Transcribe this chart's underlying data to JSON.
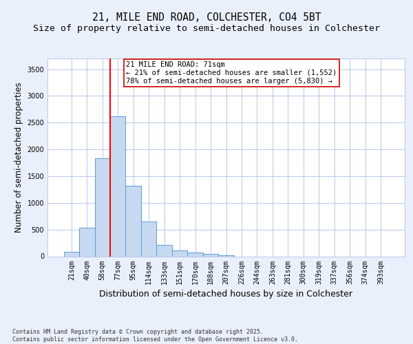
{
  "title_line1": "21, MILE END ROAD, COLCHESTER, CO4 5BT",
  "title_line2": "Size of property relative to semi-detached houses in Colchester",
  "xlabel": "Distribution of semi-detached houses by size in Colchester",
  "ylabel": "Number of semi-detached properties",
  "footnote": "Contains HM Land Registry data © Crown copyright and database right 2025.\nContains public sector information licensed under the Open Government Licence v3.0.",
  "categories": [
    "21sqm",
    "40sqm",
    "58sqm",
    "77sqm",
    "95sqm",
    "114sqm",
    "133sqm",
    "151sqm",
    "170sqm",
    "188sqm",
    "207sqm",
    "226sqm",
    "244sqm",
    "263sqm",
    "281sqm",
    "300sqm",
    "319sqm",
    "337sqm",
    "356sqm",
    "374sqm",
    "393sqm"
  ],
  "values": [
    80,
    530,
    1840,
    2620,
    1320,
    650,
    210,
    110,
    70,
    45,
    20,
    0,
    0,
    0,
    0,
    0,
    0,
    0,
    0,
    0,
    0
  ],
  "bar_color": "#c6d9f0",
  "bar_edge_color": "#5b9bd5",
  "vline_color": "red",
  "annotation_text": "21 MILE END ROAD: 71sqm\n← 21% of semi-detached houses are smaller (1,552)\n78% of semi-detached houses are larger (5,830) →",
  "annotation_box_color": "white",
  "annotation_box_edge_color": "#cc0000",
  "ylim": [
    0,
    3700
  ],
  "yticks": [
    0,
    500,
    1000,
    1500,
    2000,
    2500,
    3000,
    3500
  ],
  "background_color": "#eaf0fb",
  "plot_bg_color": "white",
  "grid_color": "#b8c8e8",
  "title_fontsize": 10.5,
  "subtitle_fontsize": 9.5,
  "axis_label_fontsize": 8.5,
  "tick_fontsize": 7,
  "annotation_fontsize": 7.5,
  "footnote_fontsize": 6,
  "vline_bin_index": 2.5
}
